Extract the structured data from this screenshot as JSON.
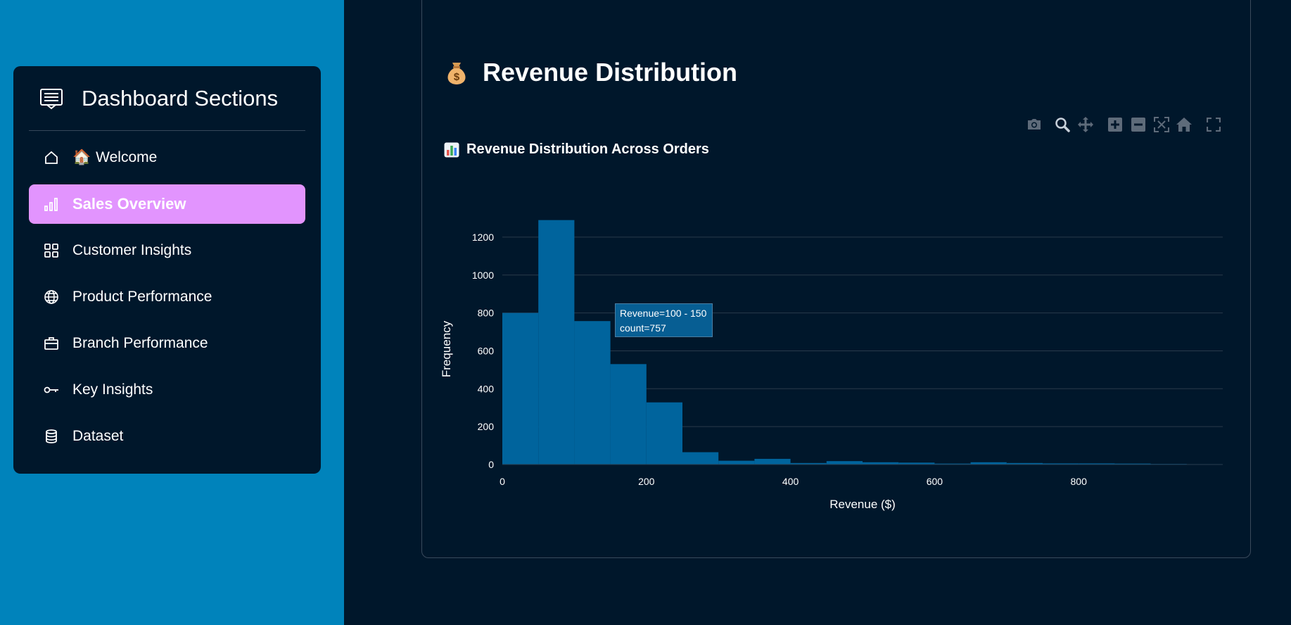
{
  "sidebar": {
    "title": "Dashboard Sections",
    "items": [
      {
        "label": "Welcome",
        "emoji": "🏠",
        "icon": "home-icon",
        "active": false
      },
      {
        "label": "Sales Overview",
        "icon": "bar-chart-icon",
        "active": true
      },
      {
        "label": "Customer Insights",
        "icon": "grid-icon",
        "active": false
      },
      {
        "label": "Product Performance",
        "icon": "globe-icon",
        "active": false
      },
      {
        "label": "Branch Performance",
        "icon": "briefcase-icon",
        "active": false
      },
      {
        "label": "Key Insights",
        "icon": "key-icon",
        "active": false
      },
      {
        "label": "Dataset",
        "icon": "database-icon",
        "active": false
      }
    ],
    "accent_color": "#e294fe"
  },
  "main": {
    "title": "Revenue Distribution",
    "chart_title": "Revenue Distribution Across Orders",
    "modebar": [
      "camera-icon",
      "zoom-icon",
      "pan-icon",
      "zoom-in-icon",
      "zoom-out-icon",
      "autoscale-icon",
      "reset-axes-icon",
      "fullscreen-icon"
    ],
    "tooltip": {
      "line1": "Revenue=100 - 150",
      "line2": "count=757"
    }
  },
  "chart_data": {
    "type": "bar",
    "title": "Revenue Distribution Across Orders",
    "xlabel": "Revenue ($)",
    "ylabel": "Frequency",
    "bin_width": 50,
    "bin_starts": [
      0,
      50,
      100,
      150,
      200,
      250,
      300,
      350,
      400,
      450,
      500,
      550,
      600,
      650,
      700,
      750,
      800,
      850,
      900,
      950
    ],
    "values": [
      800,
      1290,
      757,
      530,
      328,
      65,
      20,
      30,
      8,
      18,
      12,
      10,
      5,
      12,
      8,
      6,
      6,
      5,
      3,
      2
    ],
    "xlim": [
      0,
      1000
    ],
    "ylim": [
      0,
      1300
    ],
    "x_ticks": [
      0,
      200,
      400,
      600,
      800
    ],
    "y_ticks": [
      0,
      200,
      400,
      600,
      800,
      1000,
      1200
    ],
    "bar_color": "#00649d",
    "grid": true
  }
}
